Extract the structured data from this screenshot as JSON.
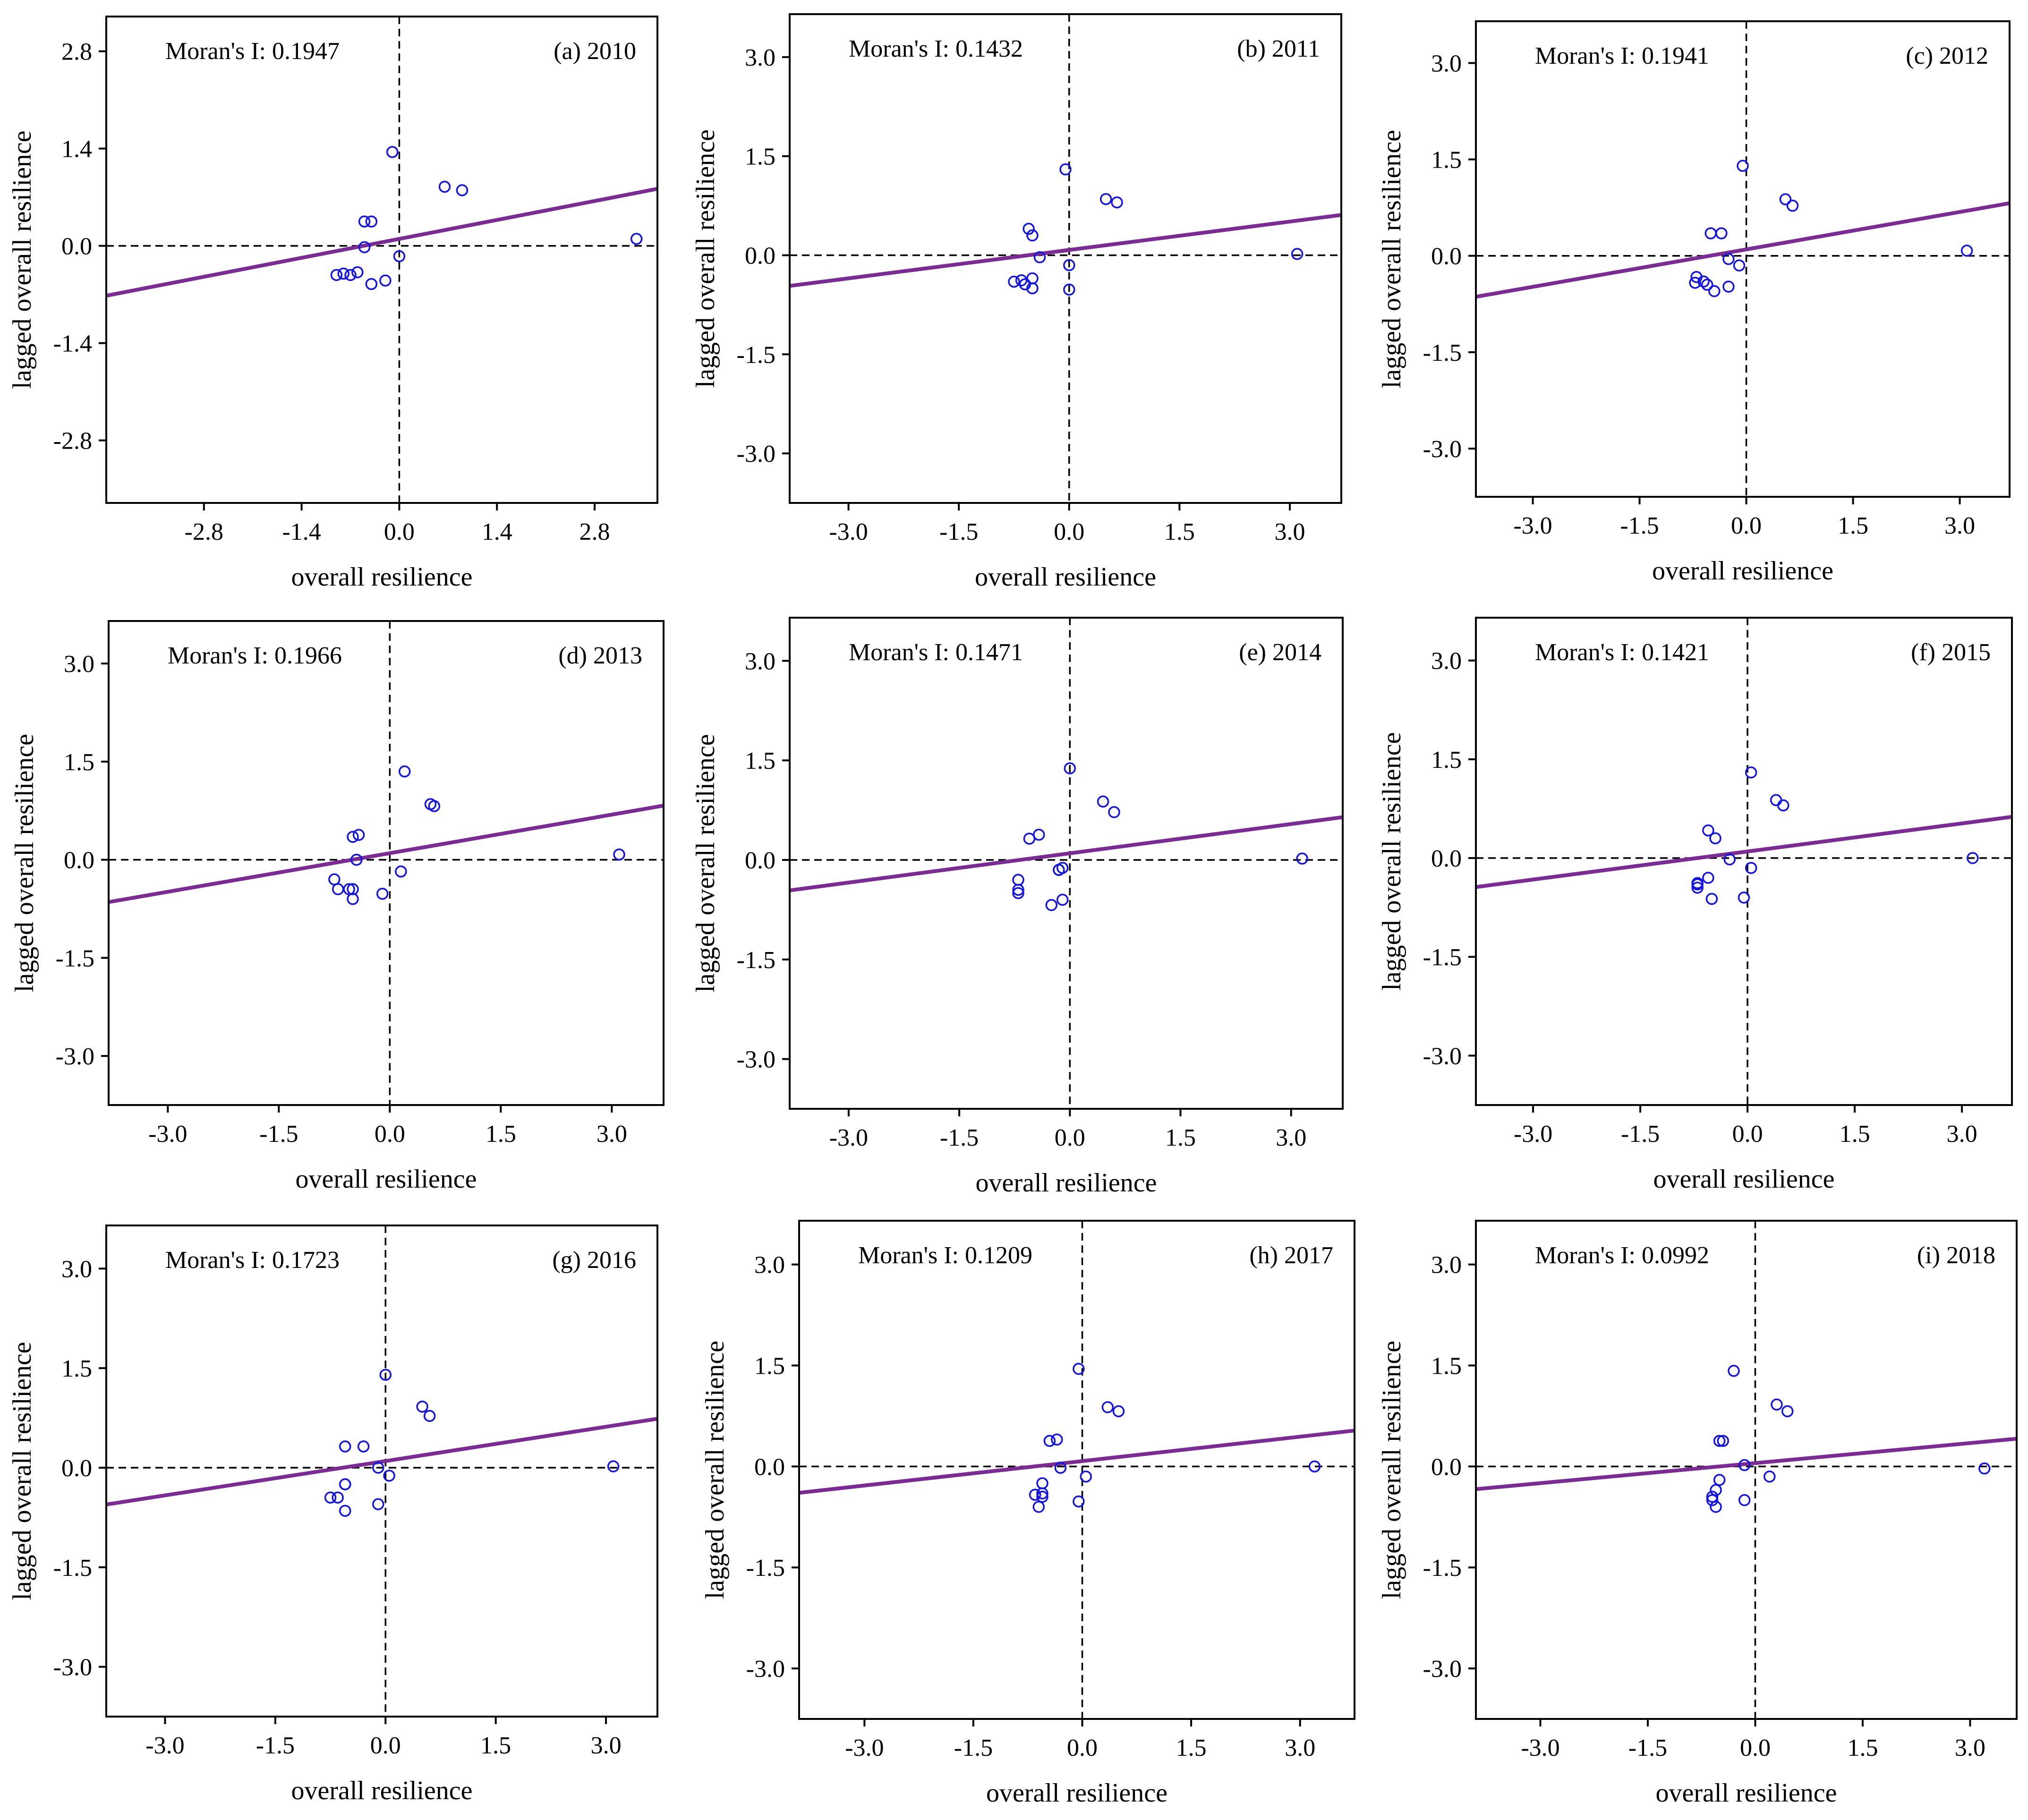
{
  "chart_data": [
    {
      "type": "scatter",
      "panel": "(a) 2010",
      "moran_label": "Moran's I: 0.1947",
      "xlabel": "overall resilience",
      "ylabel": "lagged overall resilience",
      "xlim": [
        -4.2,
        3.7
      ],
      "ylim": [
        -3.7,
        3.3
      ],
      "xticks": [
        -2.8,
        -1.4,
        0.0,
        1.4,
        2.8
      ],
      "xtick_labels": [
        "-2.8",
        "-1.4",
        "0.0",
        "1.4",
        "2.8"
      ],
      "yticks": [
        -2.8,
        -1.4,
        0.0,
        1.4,
        2.8
      ],
      "ytick_labels": [
        "-2.8",
        "-1.4",
        "0.0",
        "1.4",
        "2.8"
      ],
      "slope": 0.1947,
      "intercept": 0.1,
      "points": [
        [
          -0.1,
          1.35
        ],
        [
          0.65,
          0.85
        ],
        [
          0.9,
          0.8
        ],
        [
          3.4,
          0.1
        ],
        [
          -0.5,
          0.35
        ],
        [
          -0.4,
          0.35
        ],
        [
          -0.5,
          -0.02
        ],
        [
          0.0,
          -0.15
        ],
        [
          -0.9,
          -0.42
        ],
        [
          -0.8,
          -0.4
        ],
        [
          -0.7,
          -0.42
        ],
        [
          -0.6,
          -0.38
        ],
        [
          -0.4,
          -0.55
        ],
        [
          -0.2,
          -0.5
        ]
      ]
    },
    {
      "type": "scatter",
      "panel": "(b) 2011",
      "moran_label": "Moran's I: 0.1432",
      "xlabel": "overall resilience",
      "ylabel": "lagged overall resilience",
      "xlim": [
        -3.8,
        3.7
      ],
      "ylim": [
        -3.75,
        3.65
      ],
      "xticks": [
        -3.0,
        -1.5,
        0.0,
        1.5,
        3.0
      ],
      "xtick_labels": [
        "-3.0",
        "-1.5",
        "0.0",
        "1.5",
        "3.0"
      ],
      "yticks": [
        -3.0,
        -1.5,
        0.0,
        1.5,
        3.0
      ],
      "ytick_labels": [
        "-3.0",
        "-1.5",
        "0.0",
        "1.5",
        "3.0"
      ],
      "slope": 0.1432,
      "intercept": 0.08,
      "points": [
        [
          -0.05,
          1.3
        ],
        [
          0.5,
          0.85
        ],
        [
          0.65,
          0.8
        ],
        [
          3.1,
          0.02
        ],
        [
          -0.55,
          0.4
        ],
        [
          -0.5,
          0.3
        ],
        [
          -0.4,
          -0.03
        ],
        [
          0.0,
          -0.15
        ],
        [
          -0.75,
          -0.4
        ],
        [
          -0.65,
          -0.38
        ],
        [
          -0.6,
          -0.44
        ],
        [
          -0.5,
          -0.35
        ],
        [
          -0.5,
          -0.5
        ],
        [
          0.0,
          -0.52
        ]
      ]
    },
    {
      "type": "scatter",
      "panel": "(c) 2012",
      "moran_label": "Moran's I: 0.1941",
      "xlabel": "overall resilience",
      "ylabel": "lagged overall resilience",
      "xlim": [
        -3.8,
        3.7
      ],
      "ylim": [
        -3.75,
        3.65
      ],
      "xticks": [
        -3.0,
        -1.5,
        0.0,
        1.5,
        3.0
      ],
      "xtick_labels": [
        "-3.0",
        "-1.5",
        "0.0",
        "1.5",
        "3.0"
      ],
      "yticks": [
        -3.0,
        -1.5,
        0.0,
        1.5,
        3.0
      ],
      "ytick_labels": [
        "-3.0",
        "-1.5",
        "0.0",
        "1.5",
        "3.0"
      ],
      "slope": 0.1941,
      "intercept": 0.1,
      "points": [
        [
          -0.05,
          1.4
        ],
        [
          0.55,
          0.88
        ],
        [
          0.65,
          0.78
        ],
        [
          3.1,
          0.08
        ],
        [
          -0.5,
          0.35
        ],
        [
          -0.35,
          0.35
        ],
        [
          -0.25,
          -0.05
        ],
        [
          -0.1,
          -0.15
        ],
        [
          -0.7,
          -0.33
        ],
        [
          -0.72,
          -0.42
        ],
        [
          -0.6,
          -0.4
        ],
        [
          -0.55,
          -0.45
        ],
        [
          -0.45,
          -0.55
        ],
        [
          -0.25,
          -0.48
        ]
      ]
    },
    {
      "type": "scatter",
      "panel": "(d) 2013",
      "moran_label": "Moran's I: 0.1966",
      "xlabel": "overall resilience",
      "ylabel": "lagged overall resilience",
      "xlim": [
        -3.8,
        3.7
      ],
      "ylim": [
        -3.75,
        3.65
      ],
      "xticks": [
        -3.0,
        -1.5,
        0.0,
        1.5,
        3.0
      ],
      "xtick_labels": [
        "-3.0",
        "-1.5",
        "0.0",
        "1.5",
        "3.0"
      ],
      "yticks": [
        -3.0,
        -1.5,
        0.0,
        1.5,
        3.0
      ],
      "ytick_labels": [
        "-3.0",
        "-1.5",
        "0.0",
        "1.5",
        "3.0"
      ],
      "slope": 0.1966,
      "intercept": 0.1,
      "points": [
        [
          0.2,
          1.35
        ],
        [
          0.55,
          0.85
        ],
        [
          0.6,
          0.82
        ],
        [
          3.1,
          0.08
        ],
        [
          -0.5,
          0.35
        ],
        [
          -0.42,
          0.38
        ],
        [
          -0.45,
          0.0
        ],
        [
          0.15,
          -0.18
        ],
        [
          -0.75,
          -0.3
        ],
        [
          -0.7,
          -0.45
        ],
        [
          -0.55,
          -0.45
        ],
        [
          -0.5,
          -0.6
        ],
        [
          -0.1,
          -0.52
        ],
        [
          -0.5,
          -0.45
        ]
      ]
    },
    {
      "type": "scatter",
      "panel": "(e) 2014",
      "moran_label": "Moran's I: 0.1471",
      "xlabel": "overall resilience",
      "ylabel": "lagged overall resilience",
      "xlim": [
        -3.8,
        3.7
      ],
      "ylim": [
        -3.75,
        3.65
      ],
      "xticks": [
        -3.0,
        -1.5,
        0.0,
        1.5,
        3.0
      ],
      "xtick_labels": [
        "-3.0",
        "-1.5",
        "0.0",
        "1.5",
        "3.0"
      ],
      "yticks": [
        -3.0,
        -1.5,
        0.0,
        1.5,
        3.0
      ],
      "ytick_labels": [
        "-3.0",
        "-1.5",
        "0.0",
        "1.5",
        "3.0"
      ],
      "slope": 0.1471,
      "intercept": 0.1,
      "points": [
        [
          0.0,
          1.38
        ],
        [
          0.45,
          0.88
        ],
        [
          0.6,
          0.72
        ],
        [
          3.15,
          0.02
        ],
        [
          -0.55,
          0.32
        ],
        [
          -0.42,
          0.38
        ],
        [
          -0.15,
          -0.15
        ],
        [
          -0.1,
          -0.12
        ],
        [
          -0.7,
          -0.3
        ],
        [
          -0.7,
          -0.45
        ],
        [
          -0.7,
          -0.5
        ],
        [
          -0.25,
          -0.68
        ],
        [
          -0.1,
          -0.6
        ],
        [
          -0.15,
          -0.15
        ]
      ]
    },
    {
      "type": "scatter",
      "panel": "(f) 2015",
      "moran_label": "Moran's I: 0.1421",
      "xlabel": "overall resilience",
      "ylabel": "lagged overall resilience",
      "xlim": [
        -3.8,
        3.7
      ],
      "ylim": [
        -3.75,
        3.65
      ],
      "xticks": [
        -3.0,
        -1.5,
        0.0,
        1.5,
        3.0
      ],
      "xtick_labels": [
        "-3.0",
        "-1.5",
        "0.0",
        "1.5",
        "3.0"
      ],
      "yticks": [
        -3.0,
        -1.5,
        0.0,
        1.5,
        3.0
      ],
      "ytick_labels": [
        "-3.0",
        "-1.5",
        "0.0",
        "1.5",
        "3.0"
      ],
      "slope": 0.1421,
      "intercept": 0.1,
      "points": [
        [
          0.05,
          1.3
        ],
        [
          0.4,
          0.88
        ],
        [
          0.5,
          0.8
        ],
        [
          3.15,
          0.0
        ],
        [
          -0.55,
          0.42
        ],
        [
          -0.45,
          0.3
        ],
        [
          -0.25,
          -0.02
        ],
        [
          0.05,
          -0.15
        ],
        [
          -0.7,
          -0.38
        ],
        [
          -0.7,
          -0.45
        ],
        [
          -0.55,
          -0.3
        ],
        [
          -0.5,
          -0.62
        ],
        [
          -0.05,
          -0.6
        ],
        [
          -0.7,
          -0.4
        ]
      ]
    },
    {
      "type": "scatter",
      "panel": "(g) 2016",
      "moran_label": "Moran's I: 0.1723",
      "xlabel": "overall resilience",
      "ylabel": "lagged overall resilience",
      "xlim": [
        -3.8,
        3.7
      ],
      "ylim": [
        -3.75,
        3.65
      ],
      "xticks": [
        -3.0,
        -1.5,
        0.0,
        1.5,
        3.0
      ],
      "xtick_labels": [
        "-3.0",
        "-1.5",
        "0.0",
        "1.5",
        "3.0"
      ],
      "yticks": [
        -3.0,
        -1.5,
        0.0,
        1.5,
        3.0
      ],
      "ytick_labels": [
        "-3.0",
        "-1.5",
        "0.0",
        "1.5",
        "3.0"
      ],
      "slope": 0.1723,
      "intercept": 0.1,
      "points": [
        [
          0.0,
          1.4
        ],
        [
          0.5,
          0.92
        ],
        [
          0.6,
          0.78
        ],
        [
          3.1,
          0.02
        ],
        [
          -0.55,
          0.32
        ],
        [
          -0.3,
          0.32
        ],
        [
          -0.1,
          0.0
        ],
        [
          0.05,
          -0.12
        ],
        [
          -0.75,
          -0.45
        ],
        [
          -0.65,
          -0.45
        ],
        [
          -0.55,
          -0.25
        ],
        [
          -0.55,
          -0.65
        ],
        [
          -0.1,
          -0.55
        ],
        [
          -0.55,
          -0.25
        ]
      ]
    },
    {
      "type": "scatter",
      "panel": "(h) 2017",
      "moran_label": "Moran's I: 0.1209",
      "xlabel": "overall resilience",
      "ylabel": "lagged overall resilience",
      "xlim": [
        -3.9,
        3.75
      ],
      "ylim": [
        -3.75,
        3.65
      ],
      "xticks": [
        -3.0,
        -1.5,
        0.0,
        1.5,
        3.0
      ],
      "xtick_labels": [
        "-3.0",
        "-1.5",
        "0.0",
        "1.5",
        "3.0"
      ],
      "yticks": [
        -3.0,
        -1.5,
        0.0,
        1.5,
        3.0
      ],
      "ytick_labels": [
        "-3.0",
        "-1.5",
        "0.0",
        "1.5",
        "3.0"
      ],
      "slope": 0.1209,
      "intercept": 0.08,
      "points": [
        [
          -0.05,
          1.45
        ],
        [
          0.35,
          0.88
        ],
        [
          0.5,
          0.82
        ],
        [
          3.2,
          0.0
        ],
        [
          -0.45,
          0.38
        ],
        [
          -0.35,
          0.4
        ],
        [
          -0.3,
          -0.02
        ],
        [
          0.05,
          -0.15
        ],
        [
          -0.65,
          -0.42
        ],
        [
          -0.55,
          -0.25
        ],
        [
          -0.55,
          -0.4
        ],
        [
          -0.6,
          -0.6
        ],
        [
          -0.05,
          -0.52
        ],
        [
          -0.55,
          -0.45
        ]
      ]
    },
    {
      "type": "scatter",
      "panel": "(i) 2018",
      "moran_label": "Moran's I: 0.0992",
      "xlabel": "overall resilience",
      "ylabel": "lagged overall resilience",
      "xlim": [
        -3.9,
        3.65
      ],
      "ylim": [
        -3.75,
        3.65
      ],
      "xticks": [
        -3.0,
        -1.5,
        0.0,
        1.5,
        3.0
      ],
      "xtick_labels": [
        "-3.0",
        "-1.5",
        "0.0",
        "1.5",
        "3.0"
      ],
      "yticks": [
        -3.0,
        -1.5,
        0.0,
        1.5,
        3.0
      ],
      "ytick_labels": [
        "-3.0",
        "-1.5",
        "0.0",
        "1.5",
        "3.0"
      ],
      "slope": 0.0992,
      "intercept": 0.05,
      "points": [
        [
          -0.3,
          1.42
        ],
        [
          0.3,
          0.92
        ],
        [
          0.45,
          0.82
        ],
        [
          3.2,
          -0.03
        ],
        [
          -0.5,
          0.38
        ],
        [
          -0.45,
          0.38
        ],
        [
          -0.15,
          0.02
        ],
        [
          0.2,
          -0.15
        ],
        [
          -0.6,
          -0.45
        ],
        [
          -0.55,
          -0.35
        ],
        [
          -0.5,
          -0.2
        ],
        [
          -0.55,
          -0.6
        ],
        [
          -0.15,
          -0.5
        ],
        [
          -0.6,
          -0.5
        ]
      ]
    }
  ]
}
